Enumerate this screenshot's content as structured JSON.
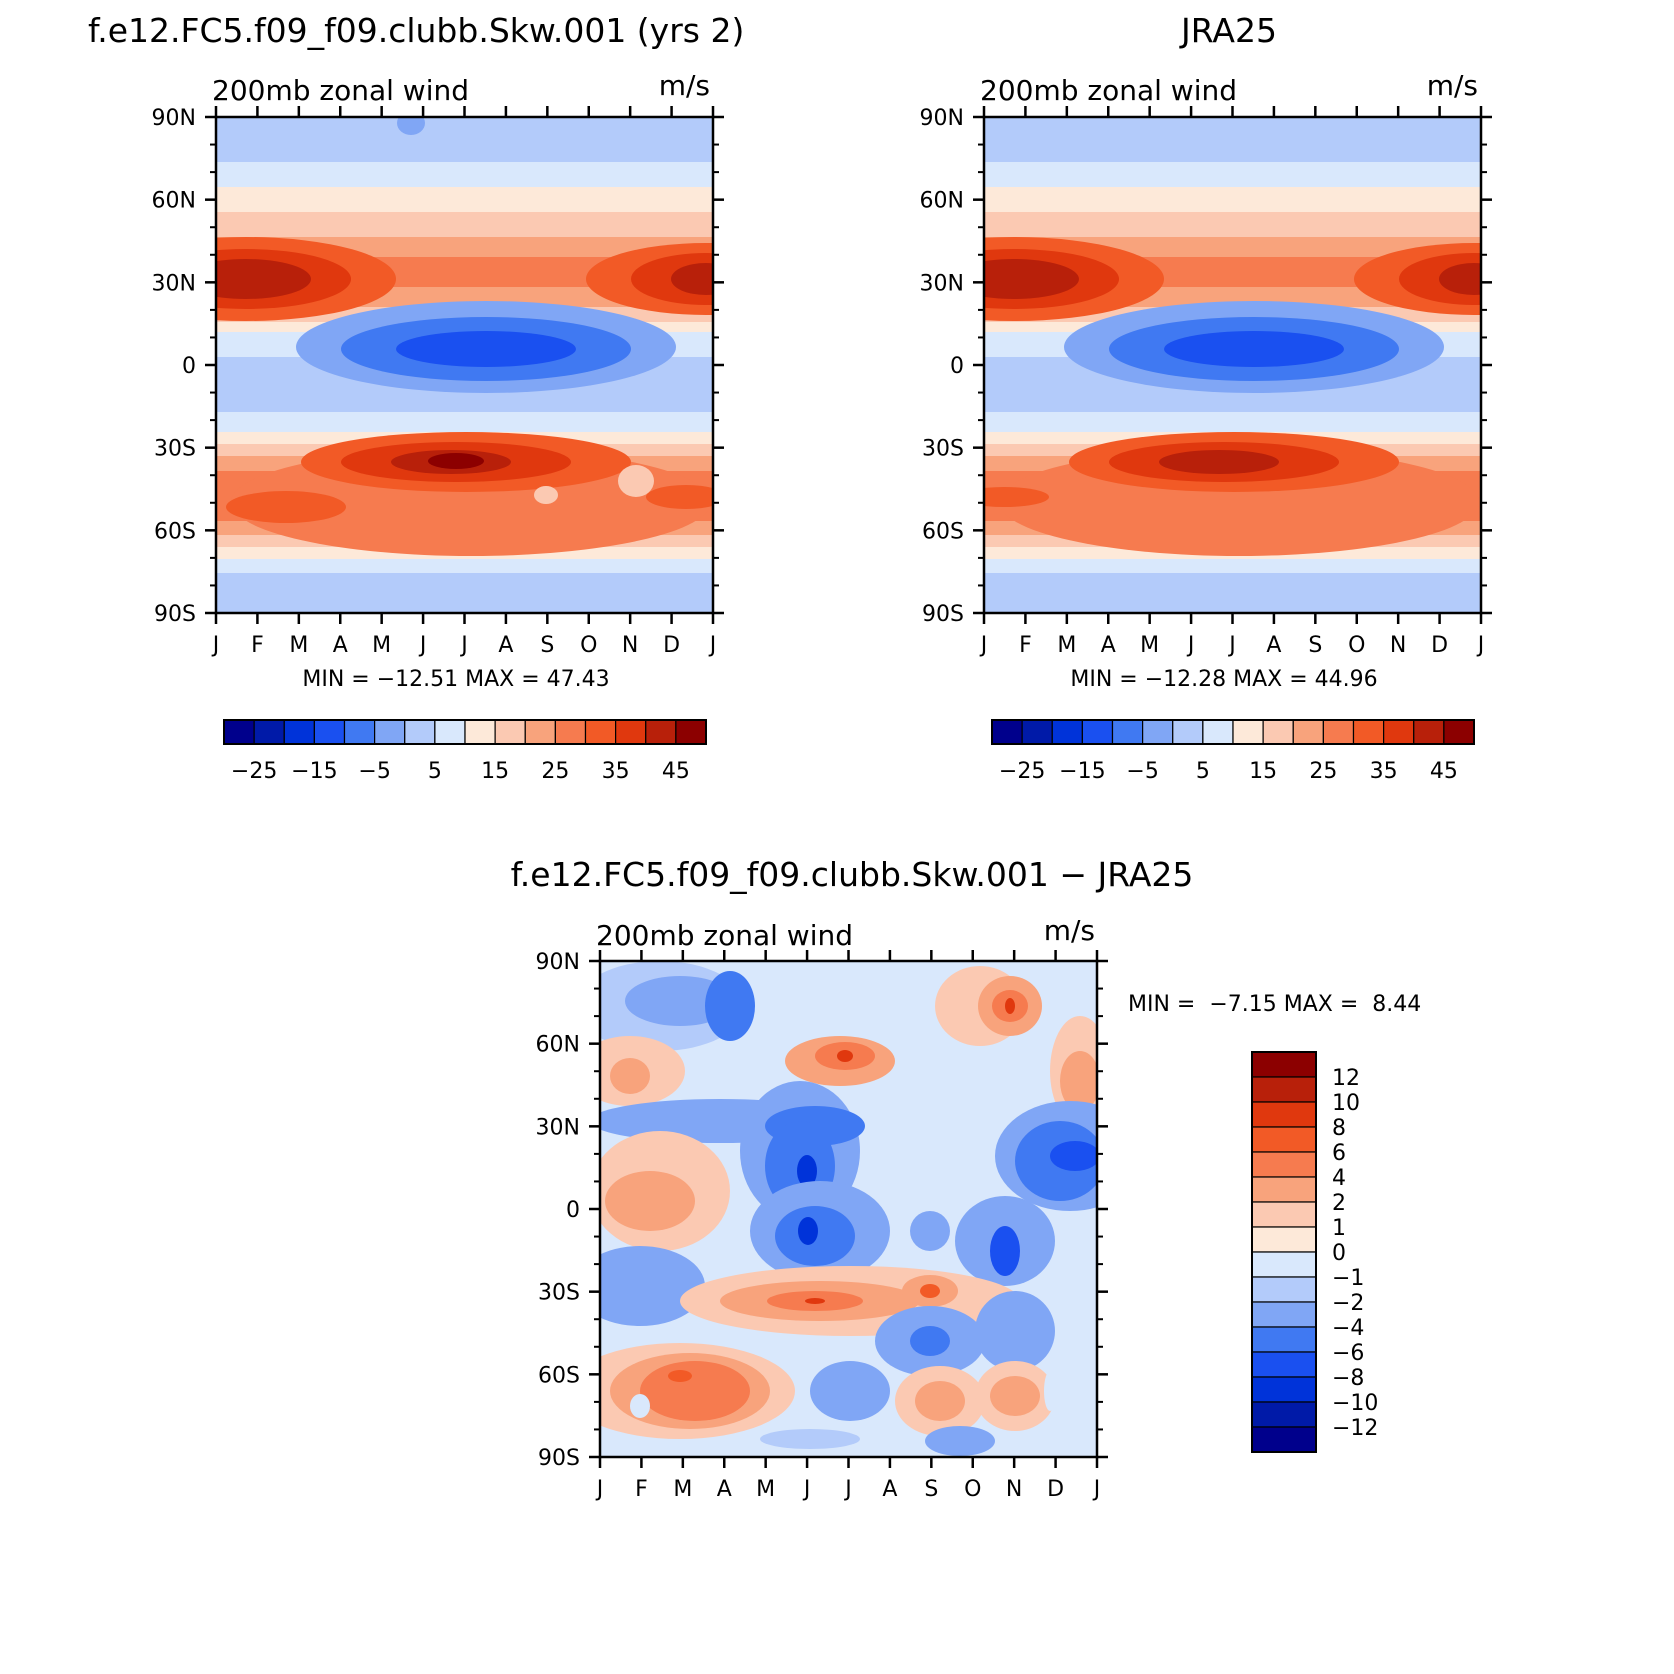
{
  "chart_data": [
    {
      "type": "heatmap",
      "title": "f.e12.FC5.f09_f09.clubb.Skw.001 (yrs 2)",
      "subtitle_left": "200mb zonal wind",
      "subtitle_right": "m/s",
      "x_tick_labels": [
        "J",
        "F",
        "M",
        "A",
        "M",
        "J",
        "J",
        "A",
        "S",
        "O",
        "N",
        "D",
        "J"
      ],
      "y_tick_labels": [
        "90N",
        "60N",
        "30N",
        "0",
        "30S",
        "60S",
        "90S"
      ],
      "ylim": [
        -90,
        90
      ],
      "min_max_text": "MIN = −12.51 MAX = 47.43",
      "min": -12.51,
      "max": 47.43,
      "colorbar_labels": [
        "−25",
        "−15",
        "−5",
        "5",
        "15",
        "25",
        "35",
        "45"
      ],
      "levels": [
        -25,
        -20,
        -15,
        -10,
        -5,
        0,
        5,
        10,
        15,
        20,
        25,
        30,
        35,
        40,
        45
      ]
    },
    {
      "type": "heatmap",
      "title": "JRA25",
      "subtitle_left": "200mb zonal wind",
      "subtitle_right": "m/s",
      "x_tick_labels": [
        "J",
        "F",
        "M",
        "A",
        "M",
        "J",
        "J",
        "A",
        "S",
        "O",
        "N",
        "D",
        "J"
      ],
      "y_tick_labels": [
        "90N",
        "60N",
        "30N",
        "0",
        "30S",
        "60S",
        "90S"
      ],
      "ylim": [
        -90,
        90
      ],
      "min_max_text": "MIN = −12.28 MAX = 44.96",
      "min": -12.28,
      "max": 44.96,
      "colorbar_labels": [
        "−25",
        "−15",
        "−5",
        "5",
        "15",
        "25",
        "35",
        "45"
      ],
      "levels": [
        -25,
        -20,
        -15,
        -10,
        -5,
        0,
        5,
        10,
        15,
        20,
        25,
        30,
        35,
        40,
        45
      ]
    },
    {
      "type": "heatmap",
      "title": "f.e12.FC5.f09_f09.clubb.Skw.001 − JRA25",
      "subtitle_left": "200mb zonal wind",
      "subtitle_right": "m/s",
      "x_tick_labels": [
        "J",
        "F",
        "M",
        "A",
        "M",
        "J",
        "J",
        "A",
        "S",
        "O",
        "N",
        "D",
        "J"
      ],
      "y_tick_labels": [
        "90N",
        "60N",
        "30N",
        "0",
        "30S",
        "60S",
        "90S"
      ],
      "ylim": [
        -90,
        90
      ],
      "min_max_text": "MIN =  −7.15 MAX =  8.44",
      "min": -7.15,
      "max": 8.44,
      "colorbar_labels": [
        "12",
        "10",
        "8",
        "6",
        "4",
        "2",
        "1",
        "0",
        "−1",
        "−2",
        "−4",
        "−6",
        "−8",
        "−10",
        "−12"
      ],
      "levels": [
        -12,
        -10,
        -8,
        -6,
        -4,
        -2,
        -1,
        0,
        1,
        2,
        4,
        6,
        8,
        10,
        12
      ]
    }
  ],
  "colors": {
    "scale16": [
      "#00008c",
      "#001aa8",
      "#0033d9",
      "#1a50f0",
      "#4079f2",
      "#80a6f5",
      "#b3cbfa",
      "#d9e8fc",
      "#fde9d9",
      "#fbc9b2",
      "#f8a37c",
      "#f67b4f",
      "#f25a26",
      "#e0380e",
      "#b8200a",
      "#8c0000"
    ]
  }
}
